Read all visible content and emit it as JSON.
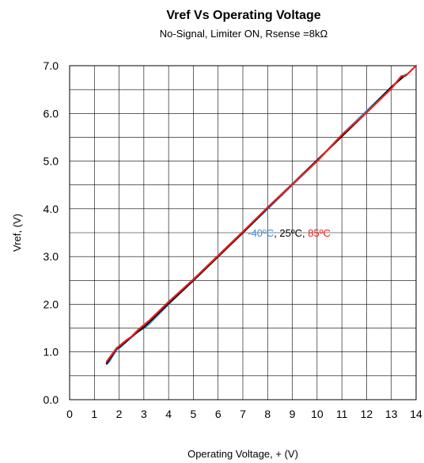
{
  "chart_data": {
    "type": "line",
    "title": "Vref Vs Operating Voltage",
    "subtitle": "No-Signal, Limiter ON, Rsense =8kΩ",
    "xlabel": "Operating Voltage, + (V)",
    "ylabel": "Vref, (V)",
    "xlim": [
      0,
      14
    ],
    "ylim": [
      0.0,
      7.0
    ],
    "x_ticks": [
      0,
      1,
      2,
      3,
      4,
      5,
      6,
      7,
      8,
      9,
      10,
      11,
      12,
      13,
      14
    ],
    "y_ticks": [
      "0.0",
      "1.0",
      "2.0",
      "3.0",
      "4.0",
      "5.0",
      "6.0",
      "7.0"
    ],
    "x_minor_grid": 0.5,
    "y_minor_grid": 0.5,
    "grid": true,
    "annotation": {
      "parts": [
        {
          "text": "-40ºC",
          "color": "#3b8fd9"
        },
        {
          "text": ", 25ºC, ",
          "color": "#000000"
        },
        {
          "text": "85ºC",
          "color": "#e8201a"
        }
      ],
      "x": 7.2,
      "y": 3.5
    },
    "series": [
      {
        "color": "#3b8fd9",
        "points": [
          [
            1.5,
            0.75
          ],
          [
            1.6,
            0.8
          ],
          [
            1.9,
            1.05
          ],
          [
            2.0,
            1.08
          ],
          [
            2.7,
            1.4
          ],
          [
            3.0,
            1.5
          ],
          [
            3.2,
            1.58
          ],
          [
            4.0,
            2.0
          ],
          [
            5.0,
            2.5
          ],
          [
            6.0,
            3.0
          ],
          [
            7.0,
            3.5
          ],
          [
            8.0,
            4.0
          ],
          [
            9.0,
            4.5
          ],
          [
            10.0,
            5.0
          ],
          [
            11.0,
            5.55
          ],
          [
            12.0,
            6.05
          ],
          [
            13.0,
            6.55
          ],
          [
            13.5,
            6.78
          ],
          [
            13.6,
            6.82
          ]
        ]
      },
      {
        "color": "#000000",
        "points": [
          [
            1.5,
            0.76
          ],
          [
            1.9,
            1.07
          ],
          [
            2.0,
            1.1
          ],
          [
            2.8,
            1.45
          ],
          [
            3.0,
            1.52
          ],
          [
            4.0,
            2.02
          ],
          [
            5.0,
            2.5
          ],
          [
            6.0,
            3.0
          ],
          [
            7.0,
            3.5
          ],
          [
            8.0,
            4.02
          ],
          [
            9.0,
            4.52
          ],
          [
            10.0,
            5.02
          ],
          [
            11.0,
            5.52
          ],
          [
            12.0,
            6.02
          ],
          [
            13.0,
            6.55
          ],
          [
            13.5,
            6.78
          ],
          [
            13.6,
            6.8
          ]
        ]
      },
      {
        "color": "#e8201a",
        "points": [
          [
            1.5,
            0.8
          ],
          [
            1.9,
            1.08
          ],
          [
            2.3,
            1.25
          ],
          [
            2.5,
            1.32
          ],
          [
            2.8,
            1.48
          ],
          [
            3.2,
            1.65
          ],
          [
            4.0,
            2.05
          ],
          [
            5.0,
            2.52
          ],
          [
            6.0,
            3.02
          ],
          [
            7.0,
            3.52
          ],
          [
            8.0,
            4.03
          ],
          [
            9.0,
            4.52
          ],
          [
            10.0,
            5.0
          ],
          [
            11.0,
            5.55
          ],
          [
            12.0,
            6.02
          ],
          [
            13.0,
            6.52
          ],
          [
            13.4,
            6.78
          ],
          [
            13.6,
            6.8
          ],
          [
            14.0,
            7.0
          ]
        ]
      }
    ]
  }
}
